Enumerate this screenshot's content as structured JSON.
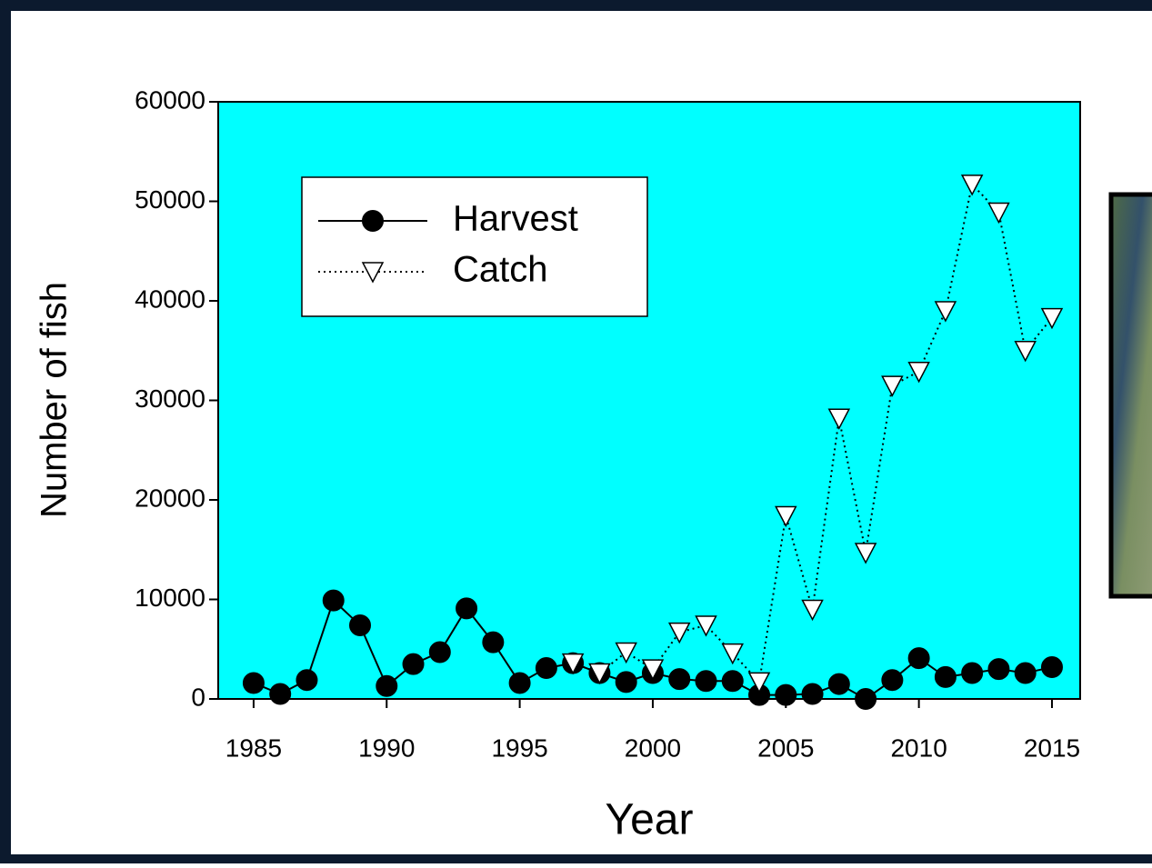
{
  "chart_data": {
    "type": "line",
    "xlabel": "Year",
    "ylabel": "Number of fish",
    "x": [
      1985,
      1986,
      1987,
      1988,
      1989,
      1990,
      1991,
      1992,
      1993,
      1994,
      1995,
      1996,
      1997,
      1998,
      1999,
      2000,
      2001,
      2002,
      2003,
      2004,
      2005,
      2006,
      2007,
      2008,
      2009,
      2010,
      2011,
      2012,
      2013,
      2014,
      2015
    ],
    "series": [
      {
        "name": "Harvest",
        "color": "#000000",
        "marker": "circle",
        "linestyle": "solid",
        "values": [
          1600,
          500,
          1900,
          9900,
          7400,
          1300,
          3500,
          4700,
          9100,
          5700,
          1600,
          3100,
          3600,
          2600,
          1700,
          2600,
          2000,
          1800,
          1800,
          400,
          400,
          500,
          1500,
          0,
          1900,
          4100,
          2200,
          2600,
          3000,
          2600,
          3200
        ]
      },
      {
        "name": "Catch",
        "color": "#ffffff",
        "marker": "triangle-down",
        "linestyle": "dotted",
        "values": [
          null,
          null,
          null,
          null,
          null,
          null,
          null,
          null,
          null,
          null,
          null,
          null,
          3600,
          2600,
          4700,
          3000,
          6700,
          7400,
          4600,
          1700,
          18400,
          9000,
          28200,
          14700,
          31500,
          32900,
          39000,
          51700,
          48900,
          35000,
          38300
        ]
      }
    ],
    "xlim": [
      1983.67,
      2016.06
    ],
    "xticks": [
      1985,
      1990,
      1995,
      2000,
      2005,
      2010,
      2015
    ],
    "ylim": [
      0,
      60000
    ],
    "yticks": [
      0,
      10000,
      20000,
      30000,
      40000,
      50000,
      60000
    ],
    "background": "#00ffff",
    "legend": "upper left"
  }
}
